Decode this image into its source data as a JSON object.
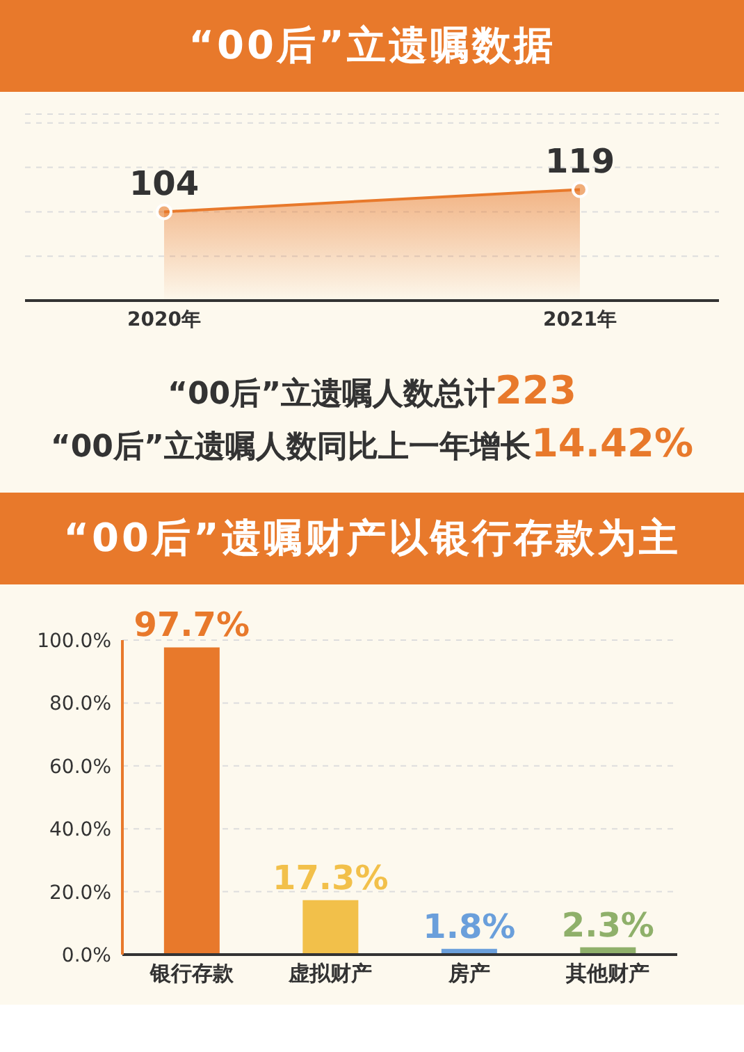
{
  "chart_data": [
    {
      "type": "area",
      "title": "“00后”立遗嘱数据",
      "categories": [
        "2020年",
        "2021年"
      ],
      "series": [
        {
          "color": "#e8792b",
          "values": [
            104,
            119
          ]
        }
      ],
      "data_labels": true,
      "grid": "y",
      "marker": "circle",
      "legend": false,
      "tick_labels": "x",
      "ylim": [
        44,
        170
      ],
      "yticks": [
        {
          "value": 74,
          "label": null
        },
        {
          "value": 104,
          "label": null
        },
        {
          "value": 134,
          "label": null
        },
        {
          "value": 164,
          "label": null
        }
      ],
      "annotations": [
        "“00后”立遗嘱人数总计223",
        "“00后”立遗嘱人数同比上一年增长14.42%"
      ]
    },
    {
      "type": "bar",
      "title": "“00后”遗嘱财产以银行存款为主",
      "categories": [
        "银行存款",
        "虚拟财产",
        "房产",
        "其他财产"
      ],
      "values": [
        97.7,
        17.3,
        1.8,
        2.3
      ],
      "colors": [
        "#e8792b",
        "#f2c04a",
        "#6a9fdb",
        "#8fb06a"
      ],
      "value_labels": [
        "97.7%",
        "17.3%",
        "1.8%",
        "2.3%"
      ],
      "ylim": [
        0,
        100
      ],
      "yticks": [
        {
          "value": 0,
          "label": "0.0%"
        },
        {
          "value": 20,
          "label": "20.0%"
        },
        {
          "value": 40,
          "label": "40.0%"
        },
        {
          "value": 60,
          "label": "60.0%"
        },
        {
          "value": 80,
          "label": "80.0%"
        },
        {
          "value": 100,
          "label": "100.0%"
        }
      ],
      "grid": "y",
      "legend": false
    }
  ]
}
